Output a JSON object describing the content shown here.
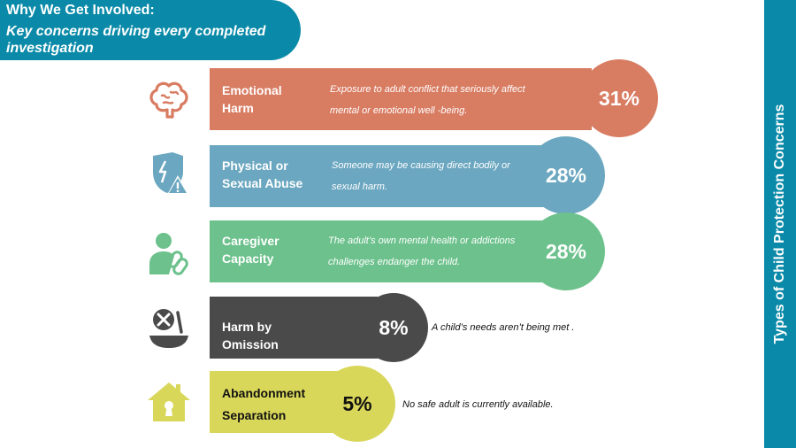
{
  "header": {
    "line1": "Why We Get Involved:",
    "line2": "Key concerns driving every completed investigation"
  },
  "side_title": "Types of Child Protection Concerns",
  "colors": {
    "header": "#0a8aa8",
    "emotional": "#d87c62",
    "physical": "#6ba7c0",
    "caregiver": "#6cc18c",
    "omission": "#4a4a4a",
    "abandonment": "#d9d75a"
  },
  "chart_data": {
    "type": "bar",
    "categories": [
      "Emotional Harm",
      "Physical or Sexual Abuse",
      "Caregiver Capacity",
      "Harm by Omission",
      "Abandonment Separation"
    ],
    "values": [
      31,
      28,
      28,
      8,
      5
    ],
    "value_labels": [
      "31%",
      "28%",
      "28%",
      "8%",
      "5%"
    ],
    "unit": "%",
    "title": "Types of Child Protection Concerns",
    "items": [
      {
        "key": "emotional",
        "label_lines": [
          "Emotional",
          "Harm"
        ],
        "description_lines": [
          "Exposure to adult conflict that seriously affect",
          "mental or emotional well -being."
        ],
        "value": 31,
        "value_label": "31%",
        "color": "#d87c62",
        "icon": "brain-icon"
      },
      {
        "key": "physical",
        "label_lines": [
          "Physical or",
          "Sexual Abuse"
        ],
        "description_lines": [
          "Someone may be causing direct bodily or",
          "sexual harm."
        ],
        "value": 28,
        "value_label": "28%",
        "color": "#6ba7c0",
        "icon": "shield-warning-icon"
      },
      {
        "key": "caregiver",
        "label_lines": [
          "Caregiver",
          "Capacity"
        ],
        "description_lines": [
          "The adult’s own mental health or addictions",
          "challenges endanger the child."
        ],
        "value": 28,
        "value_label": "28%",
        "color": "#6cc18c",
        "icon": "person-chain-icon"
      },
      {
        "key": "omission",
        "label_lines": [
          "Harm by Omission"
        ],
        "description_lines": [
          "A child’s needs aren’t being met ."
        ],
        "value": 8,
        "value_label": "8%",
        "color": "#4a4a4a",
        "icon": "empty-bowl-icon"
      },
      {
        "key": "abandonment",
        "label_lines": [
          "Abandonment",
          "Separation"
        ],
        "description_lines": [
          "No safe adult is currently available."
        ],
        "value": 5,
        "value_label": "5%",
        "color": "#d9d75a",
        "icon": "house-lock-icon"
      }
    ]
  }
}
